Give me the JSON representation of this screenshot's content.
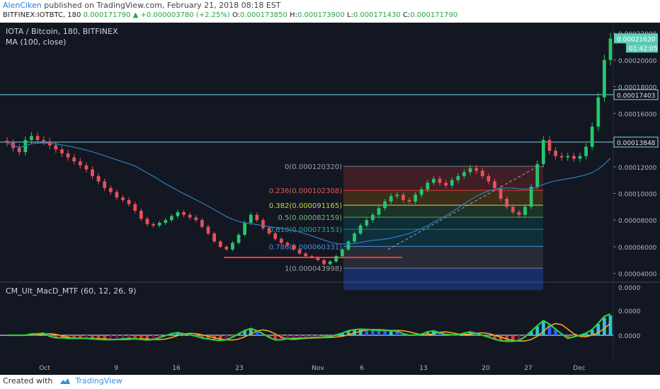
{
  "header": {
    "author": "AlenCiken",
    "published_text": "published on TradingView.com, February 21, 2018 08:18 EST",
    "symbol_interval": "BITFINEX:IOTBTC, 180",
    "open_label": "O:",
    "open": "0.000173850",
    "high_label": "H:",
    "high": "0.000173900",
    "low_label": "L:",
    "low": "0.000171430",
    "close_label": "C:",
    "close": "0.000171790",
    "change": "+0.000003780 (+2.25%)",
    "open_prefix": "0.000171790"
  },
  "footer": {
    "created_with": "Created with",
    "brand": "TradingView"
  },
  "colors": {
    "background": "#131722",
    "bull": "#26c76b",
    "bear": "#e8505b",
    "ma": "#2a7fbf",
    "hline": "#7fd3e6",
    "price_label_bg": "#5fcfb7",
    "support_line": "#e83b3b"
  },
  "chart_data": [
    {
      "type": "candlestick",
      "title": "IOTA / Bitcoin, 180, BITFINEX",
      "indicator_label": "MA (100, close)",
      "y_axis_labels": [
        "0.00022000",
        "0.00020000",
        "0.00018000",
        "0.00016000",
        "0.00012000",
        "0.00010000",
        "0.00008000",
        "0.00006000",
        "0.00004000"
      ],
      "ylim": [
        3.4e-05,
        0.000228
      ],
      "x_tick_labels": [
        "Oct",
        "9",
        "16",
        "23",
        "Nov",
        "6",
        "13",
        "20",
        "27",
        "Dec"
      ],
      "price_tags": [
        {
          "value": 0.0002162,
          "text": "0.00021620"
        },
        {
          "value": 0.00017403,
          "text": "0.00017403"
        },
        {
          "value": 0.00013848,
          "text": "0.00013848"
        }
      ],
      "countdown": "01:42:05",
      "horizontal_lines": [
        0.00017403,
        0.00013848
      ],
      "support_line_value": 5.2e-05,
      "fibonacci": [
        {
          "level": "0",
          "value": 0.00012032,
          "label": "0(0.000120320)"
        },
        {
          "level": "0.236",
          "value": 0.000102308,
          "label": "0.236(0.000102308)"
        },
        {
          "level": "0.382",
          "value": 9.1165e-05,
          "label": "0.382(0.000091165)"
        },
        {
          "level": "0.5",
          "value": 8.2159e-05,
          "label": "0.5(0.000082159)"
        },
        {
          "level": "0.618",
          "value": 7.3153e-05,
          "label": "0.618(0.000073153)"
        },
        {
          "level": "0.786",
          "value": 6.0331e-05,
          "label": "0.786(0.000060331)"
        },
        {
          "level": "1",
          "value": 4.3998e-05,
          "label": "1(0.000043998)"
        }
      ],
      "close_series": [
        0.000138,
        0.000134,
        0.000131,
        0.00014,
        0.000143,
        0.00014,
        0.000139,
        0.000136,
        0.000133,
        0.00013,
        0.000127,
        0.000124,
        0.000121,
        0.000118,
        0.000113,
        0.000109,
        0.000104,
        0.000101,
        9.7e-05,
        9.5e-05,
        9.2e-05,
        8.7e-05,
        8.1e-05,
        7.7e-05,
        7.6e-05,
        7.8e-05,
        8e-05,
        8.3e-05,
        8.6e-05,
        8.4e-05,
        8.2e-05,
        8e-05,
        7.5e-05,
        7e-05,
        6.4e-05,
        6e-05,
        5.8e-05,
        6.3e-05,
        6.9e-05,
        7.8e-05,
        8.4e-05,
        8e-05,
        7.4e-05,
        7e-05,
        6.6e-05,
        6.3e-05,
        6.1e-05,
        5.8e-05,
        5.5e-05,
        5.3e-05,
        5.2e-05,
        5e-05,
        4.7e-05,
        4.9e-05,
        5.3e-05,
        5.8e-05,
        6.4e-05,
        7e-05,
        7.6e-05,
        8e-05,
        8.4e-05,
        8.9e-05,
        9.4e-05,
        9.8e-05,
        9.9e-05,
        9.5e-05,
        9.4e-05,
        9.9e-05,
        0.000103,
        0.000108,
        0.000111,
        0.000108,
        0.000106,
        0.00011,
        0.000113,
        0.000116,
        0.000119,
        0.000117,
        0.000113,
        0.000109,
        0.000104,
        9.6e-05,
        9e-05,
        8.6e-05,
        8.4e-05,
        9e-05,
        0.000105,
        0.000122,
        0.00014,
        0.000132,
        0.000128,
        0.000127,
        0.000128,
        0.000126,
        0.000128,
        0.000135,
        0.00015,
        0.000172,
        0.0002,
        0.000216
      ]
    },
    {
      "type": "histogram+line",
      "indicator_label": "CM_Ult_MacD_MTF (60, 12, 26, 9)",
      "y_axis_labels": [
        "0.0000",
        "0.0000",
        "0.0000"
      ]
    }
  ]
}
